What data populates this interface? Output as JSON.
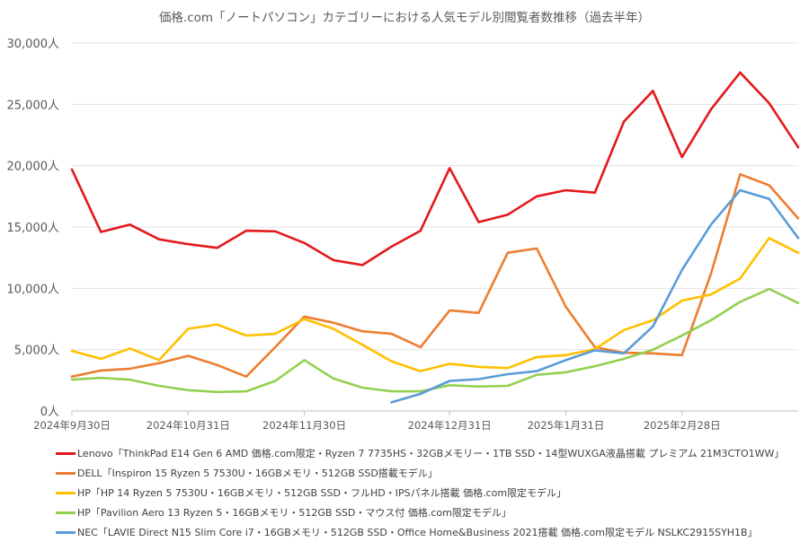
{
  "chart_data": {
    "type": "line",
    "title": "価格.com「ノートパソコン」カテゴリーにおける人気モデル別閲覧者数推移（過去半年）",
    "ylim": [
      0,
      30000
    ],
    "yticks": [
      0,
      5000,
      10000,
      15000,
      20000,
      25000,
      30000
    ],
    "ytick_labels": [
      "0人",
      "5,000人",
      "10,000人",
      "15,000人",
      "20,000人",
      "25,000人",
      "30,000人"
    ],
    "x_categories": [
      "2024-09-30",
      "2024-10-07",
      "2024-10-14",
      "2024-10-21",
      "2024-10-28",
      "2024-11-04",
      "2024-11-11",
      "2024-11-18",
      "2024-11-25",
      "2024-12-02",
      "2024-12-09",
      "2024-12-16",
      "2024-12-23",
      "2024-12-30",
      "2025-01-06",
      "2025-01-13",
      "2025-01-20",
      "2025-01-27",
      "2025-02-03",
      "2025-02-10",
      "2025-02-17",
      "2025-02-24",
      "2025-03-03",
      "2025-03-10",
      "2025-03-17",
      "2025-03-24"
    ],
    "xticks": [
      {
        "index": 0,
        "label": "2024年9月30日"
      },
      {
        "index": 4,
        "label": "2024年10月31日"
      },
      {
        "index": 8,
        "label": "2024年11月30日"
      },
      {
        "index": 13,
        "label": "2024年12月31日"
      },
      {
        "index": 17,
        "label": "2025年1月31日"
      },
      {
        "index": 21,
        "label": "2025年2月28日"
      }
    ],
    "grid": "horizontal",
    "legend_position": "bottom",
    "series": [
      {
        "name": "Lenovo「ThinkPad E14 Gen 6 AMD 価格.com限定・Ryzen 7 7735HS・32GBメモリー・1TB SSD・14型WUXGA液晶搭載 プレミアム 21M3CTO1WW」",
        "color": "#e3191c",
        "values": [
          19700,
          14600,
          15200,
          14000,
          13600,
          13300,
          14700,
          14650,
          13700,
          12300,
          11900,
          13400,
          14700,
          19800,
          15400,
          16000,
          17500,
          18000,
          17800,
          23600,
          26100,
          20700,
          24600,
          27600,
          25100,
          21500
        ]
      },
      {
        "name": "DELL「Inspiron 15 Ryzen 5 7530U・16GBメモリ・512GB SSD搭載モデル」",
        "color": "#ed7d31",
        "values": [
          2800,
          3300,
          3450,
          3900,
          4500,
          3750,
          2800,
          5200,
          7700,
          7200,
          6500,
          6300,
          5200,
          8200,
          8000,
          12900,
          13250,
          8500,
          5200,
          4750,
          4700,
          4550,
          11200,
          19300,
          18400,
          15700
        ]
      },
      {
        "name": "HP「HP 14 Ryzen 5 7530U・16GBメモリ・512GB SSD・フルHD・IPSパネル搭載 価格.com限定モデル」",
        "color": "#ffc000",
        "values": [
          4900,
          4250,
          5100,
          4150,
          6700,
          7050,
          6150,
          6300,
          7500,
          6700,
          5400,
          4050,
          3250,
          3850,
          3600,
          3500,
          4400,
          4550,
          5050,
          6600,
          7400,
          9000,
          9500,
          10800,
          14100,
          12900
        ]
      },
      {
        "name": "HP「Pavilion Aero 13 Ryzen 5・16GBメモリ・512GB SSD・マウス付 価格.com限定モデル」",
        "color": "#92d050",
        "values": [
          2550,
          2700,
          2550,
          2050,
          1700,
          1550,
          1600,
          2450,
          4150,
          2650,
          1900,
          1600,
          1600,
          2100,
          2000,
          2050,
          2950,
          3150,
          3650,
          4250,
          5000,
          6150,
          7400,
          8900,
          9950,
          8800
        ]
      },
      {
        "name": "NEC「LAVIE Direct N15 Slim Core i7・16GBメモリ・512GB SSD・Office Home&Business 2021搭載 価格.com限定モデル NSLKC2915SYH1B」",
        "color": "#5b9bd5",
        "values": [
          null,
          null,
          null,
          null,
          null,
          null,
          null,
          null,
          null,
          null,
          null,
          700,
          1400,
          2450,
          2600,
          3000,
          3250,
          4150,
          4950,
          4700,
          6900,
          11500,
          15200,
          18000,
          17300,
          14100
        ]
      }
    ]
  }
}
